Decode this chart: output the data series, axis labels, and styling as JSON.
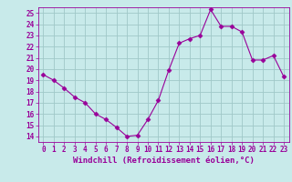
{
  "x": [
    0,
    1,
    2,
    3,
    4,
    5,
    6,
    7,
    8,
    9,
    10,
    11,
    12,
    13,
    14,
    15,
    16,
    17,
    18,
    19,
    20,
    21,
    22,
    23
  ],
  "y": [
    19.5,
    19.0,
    18.3,
    17.5,
    17.0,
    16.0,
    15.5,
    14.8,
    14.0,
    14.1,
    15.5,
    17.2,
    19.9,
    22.3,
    22.7,
    23.0,
    25.3,
    23.8,
    23.8,
    23.3,
    20.8,
    20.8,
    21.2,
    19.3
  ],
  "line_color": "#990099",
  "marker": "D",
  "marker_size": 2.5,
  "bg_color": "#c8eaea",
  "grid_color": "#a0c8c8",
  "xlabel": "Windchill (Refroidissement éolien,°C)",
  "xlim": [
    -0.5,
    23.5
  ],
  "ylim": [
    13.5,
    25.5
  ],
  "yticks": [
    14,
    15,
    16,
    17,
    18,
    19,
    20,
    21,
    22,
    23,
    24,
    25
  ],
  "xticks": [
    0,
    1,
    2,
    3,
    4,
    5,
    6,
    7,
    8,
    9,
    10,
    11,
    12,
    13,
    14,
    15,
    16,
    17,
    18,
    19,
    20,
    21,
    22,
    23
  ],
  "tick_fontsize": 5.5,
  "xlabel_fontsize": 6.5
}
